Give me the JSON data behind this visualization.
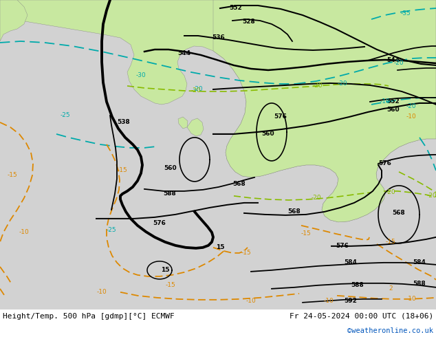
{
  "title_left": "Height/Temp. 500 hPa [gdmp][°C] ECMWF",
  "title_right": "Fr 24-05-2024 00:00 UTC (18+06)",
  "credit": "©weatheronline.co.uk",
  "land_green": "#c8e8a0",
  "ocean_gray": "#d0d0d0",
  "text_blue": "#0055bb",
  "figsize": [
    6.34,
    4.9
  ],
  "dpi": 100
}
